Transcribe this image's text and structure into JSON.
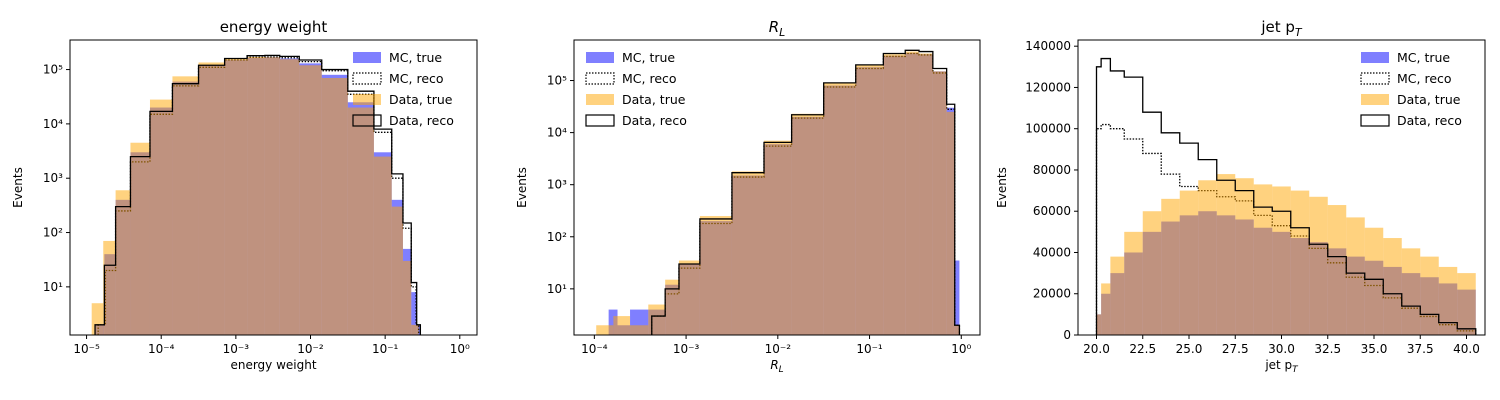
{
  "figure": {
    "background": "#ffffff"
  },
  "colors": {
    "mc_true": "#0000ff",
    "data_true": "#ffa500",
    "overlap": "#bf9380",
    "reco_line": "#000000"
  },
  "legend_labels": [
    "MC, true",
    "MC, reco",
    "Data, true",
    "Data, reco"
  ],
  "chart_data": [
    {
      "type": "histogram",
      "title": "energy weight",
      "xlabel": "energy weight",
      "ylabel": "Events",
      "xscale": "log",
      "yscale": "log",
      "xlim": [
        6e-06,
        1.7
      ],
      "ylim": [
        1.3,
        350000.0
      ],
      "xticks": [
        1e-05,
        0.0001,
        0.001,
        0.01,
        0.1,
        1
      ],
      "xtick_labels": [
        "10⁻⁵",
        "10⁻⁴",
        "10⁻³",
        "10⁻²",
        "10⁻¹",
        "10⁰"
      ],
      "yticks": [
        10,
        100,
        1000,
        10000,
        100000
      ],
      "ytick_labels": [
        "10¹",
        "10²",
        "10³",
        "10⁴",
        "10⁵"
      ],
      "legend": "top-right",
      "series": [
        {
          "name": "MC, true",
          "style": "filled",
          "color": "#0000ff",
          "alpha": 0.5,
          "x": [
            1.5e-05,
            2e-05,
            3e-05,
            5e-05,
            0.0001,
            0.0002,
            0.0005,
            0.001,
            0.002,
            0.003,
            0.005,
            0.01,
            0.02,
            0.05,
            0.1,
            0.15,
            0.2,
            0.25,
            0.28
          ],
          "values": [
            2,
            40,
            400,
            3000,
            20000,
            60000,
            120000,
            150000,
            165000,
            168000,
            160000,
            130000,
            80000,
            25000,
            3000,
            400,
            50,
            8,
            2
          ]
        },
        {
          "name": "MC, reco",
          "style": "dotted-step",
          "color": "#000000",
          "x": [
            1.6e-05,
            2e-05,
            3e-05,
            5e-05,
            0.0001,
            0.0002,
            0.0005,
            0.001,
            0.002,
            0.003,
            0.005,
            0.01,
            0.02,
            0.05,
            0.1,
            0.15,
            0.2,
            0.25,
            0.27
          ],
          "values": [
            2,
            20,
            250,
            2000,
            15000,
            50000,
            110000,
            150000,
            168000,
            170000,
            165000,
            140000,
            95000,
            35000,
            7000,
            1000,
            120,
            10,
            2
          ]
        },
        {
          "name": "Data, true",
          "style": "filled",
          "color": "#ffa500",
          "alpha": 0.5,
          "x": [
            1.4e-05,
            2e-05,
            3e-05,
            5e-05,
            0.0001,
            0.0002,
            0.0005,
            0.001,
            0.002,
            0.003,
            0.005,
            0.01,
            0.02,
            0.05,
            0.1,
            0.15,
            0.2,
            0.25
          ],
          "values": [
            5,
            70,
            600,
            4500,
            28000,
            75000,
            135000,
            160000,
            170000,
            168000,
            155000,
            120000,
            70000,
            20000,
            2500,
            300,
            30,
            2
          ]
        },
        {
          "name": "Data, reco",
          "style": "solid-step",
          "color": "#000000",
          "x": [
            1.5e-05,
            2e-05,
            3e-05,
            5e-05,
            0.0001,
            0.0002,
            0.0005,
            0.001,
            0.002,
            0.003,
            0.005,
            0.01,
            0.02,
            0.05,
            0.1,
            0.15,
            0.2,
            0.25,
            0.28
          ],
          "values": [
            2,
            25,
            300,
            2500,
            17000,
            55000,
            120000,
            160000,
            180000,
            182000,
            175000,
            150000,
            100000,
            40000,
            8000,
            1200,
            150,
            12,
            2
          ]
        }
      ]
    },
    {
      "type": "histogram",
      "title": "R_L",
      "xlabel": "R_L",
      "ylabel": "Events",
      "xscale": "log",
      "yscale": "log",
      "xlim": [
        6e-05,
        1.6
      ],
      "ylim": [
        1.3,
        600000.0
      ],
      "xticks": [
        0.0001,
        0.001,
        0.01,
        0.1,
        1
      ],
      "xtick_labels": [
        "10⁻⁴",
        "10⁻³",
        "10⁻²",
        "10⁻¹",
        "10⁰"
      ],
      "yticks": [
        10,
        100,
        1000,
        10000,
        100000
      ],
      "ytick_labels": [
        "10¹",
        "10²",
        "10³",
        "10⁴",
        "10⁵"
      ],
      "legend": "top-left",
      "series": [
        {
          "name": "MC, true",
          "style": "filled",
          "color": "#0000ff",
          "alpha": 0.5,
          "x": [
            0.00016,
            0.0002,
            0.0003,
            0.0005,
            0.0007,
            0.001,
            0.002,
            0.005,
            0.01,
            0.02,
            0.05,
            0.1,
            0.2,
            0.3,
            0.4,
            0.6,
            0.8,
            0.9
          ],
          "values": [
            4,
            2,
            4,
            4,
            12,
            30,
            200,
            1500,
            6000,
            20000,
            80000,
            180000,
            300000,
            340000,
            320000,
            150000,
            30000,
            35
          ]
        },
        {
          "name": "MC, reco",
          "style": "dotted-step",
          "color": "#000000",
          "x": [
            0.0005,
            0.0007,
            0.001,
            0.002,
            0.005,
            0.01,
            0.02,
            0.05,
            0.1,
            0.2,
            0.3,
            0.4,
            0.6,
            0.8,
            0.9
          ],
          "values": [
            3,
            8,
            25,
            180,
            1400,
            5500,
            19000,
            75000,
            170000,
            290000,
            330000,
            310000,
            140000,
            28000,
            2
          ]
        },
        {
          "name": "Data, true",
          "style": "filled",
          "color": "#ffa500",
          "alpha": 0.5,
          "x": [
            0.00013,
            0.0002,
            0.0003,
            0.0005,
            0.0007,
            0.001,
            0.002,
            0.005,
            0.01,
            0.02,
            0.05,
            0.1,
            0.2,
            0.3,
            0.4,
            0.6,
            0.8,
            0.9
          ],
          "values": [
            2,
            3,
            2,
            5,
            15,
            35,
            250,
            1800,
            7000,
            23000,
            90000,
            200000,
            320000,
            360000,
            330000,
            150000,
            25000,
            2
          ]
        },
        {
          "name": "Data, reco",
          "style": "solid-step",
          "color": "#000000",
          "x": [
            0.0005,
            0.0007,
            0.001,
            0.002,
            0.005,
            0.01,
            0.02,
            0.05,
            0.1,
            0.2,
            0.3,
            0.4,
            0.6,
            0.8,
            0.9
          ],
          "values": [
            3,
            10,
            30,
            220,
            1700,
            6500,
            22000,
            90000,
            200000,
            330000,
            380000,
            360000,
            170000,
            35000,
            2
          ]
        }
      ]
    },
    {
      "type": "histogram",
      "title": "jet p_T",
      "xlabel": "jet p_T",
      "ylabel": "Events",
      "xscale": "linear",
      "yscale": "linear",
      "xlim": [
        19,
        41
      ],
      "ylim": [
        0,
        143000
      ],
      "xticks": [
        20,
        22.5,
        25,
        27.5,
        30,
        32.5,
        35,
        37.5,
        40
      ],
      "xtick_labels": [
        "20.0",
        "22.5",
        "25.0",
        "27.5",
        "30.0",
        "32.5",
        "35.0",
        "37.5",
        "40.0"
      ],
      "yticks": [
        0,
        20000,
        40000,
        60000,
        80000,
        100000,
        120000,
        140000
      ],
      "ytick_labels": [
        "0",
        "20000",
        "40000",
        "60000",
        "80000",
        "100000",
        "120000",
        "140000"
      ],
      "legend": "top-right",
      "series": [
        {
          "name": "MC, true",
          "style": "filled",
          "color": "#0000ff",
          "alpha": 0.5,
          "x": [
            20,
            20.5,
            21,
            22,
            23,
            24,
            25,
            26,
            27,
            28,
            29,
            30,
            31,
            32,
            33,
            34,
            35,
            36,
            37,
            38,
            39,
            40
          ],
          "values": [
            10000,
            20000,
            30000,
            40000,
            50000,
            55000,
            58000,
            60000,
            58000,
            56000,
            52000,
            50000,
            47000,
            45000,
            42000,
            38000,
            36000,
            33000,
            30000,
            28000,
            25000,
            22000
          ]
        },
        {
          "name": "MC, reco",
          "style": "dotted-step",
          "color": "#000000",
          "x": [
            20,
            20.5,
            21,
            22,
            23,
            24,
            25,
            26,
            27,
            28,
            29,
            30,
            31,
            32,
            33,
            34,
            35,
            36,
            37,
            38,
            39,
            40
          ],
          "values": [
            100000,
            102000,
            100000,
            95000,
            88000,
            78000,
            72000,
            70000,
            67000,
            65000,
            58000,
            53000,
            48000,
            42000,
            35000,
            28000,
            24000,
            18000,
            13000,
            9000,
            5000,
            2000
          ]
        },
        {
          "name": "Data, true",
          "style": "filled",
          "color": "#ffa500",
          "alpha": 0.5,
          "x": [
            20,
            20.5,
            21,
            22,
            23,
            24,
            25,
            26,
            27,
            28,
            29,
            30,
            31,
            32,
            33,
            34,
            35,
            36,
            37,
            38,
            39,
            40
          ],
          "values": [
            10000,
            25000,
            38000,
            50000,
            60000,
            66000,
            70000,
            75000,
            78000,
            76000,
            73000,
            72000,
            70000,
            67000,
            63000,
            57000,
            52000,
            47000,
            42000,
            38000,
            33000,
            30000
          ]
        },
        {
          "name": "Data, reco",
          "style": "solid-step",
          "color": "#000000",
          "x": [
            20,
            20.5,
            21,
            22,
            23,
            24,
            25,
            26,
            27,
            28,
            29,
            30,
            31,
            32,
            33,
            34,
            35,
            36,
            37,
            38,
            39,
            40
          ],
          "values": [
            130000,
            134000,
            128000,
            125000,
            108000,
            98000,
            93000,
            85000,
            75000,
            70000,
            62000,
            60000,
            52000,
            44000,
            38000,
            30000,
            27000,
            20000,
            14000,
            10000,
            6000,
            3000
          ]
        }
      ]
    }
  ]
}
